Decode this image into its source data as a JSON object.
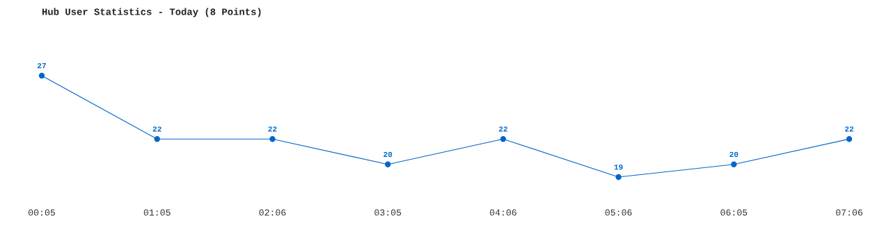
{
  "chart_data": {
    "type": "line",
    "title": "Hub User Statistics - Today (8 Points)",
    "categories": [
      "00:05",
      "01:05",
      "02:06",
      "03:05",
      "04:06",
      "05:06",
      "06:05",
      "07:06"
    ],
    "series": [
      {
        "color": "#0066cc",
        "values": [
          27,
          22,
          22,
          20,
          22,
          19,
          20,
          22
        ]
      }
    ],
    "data_labels": true,
    "marker": "circle",
    "grid": false,
    "legend": false
  }
}
